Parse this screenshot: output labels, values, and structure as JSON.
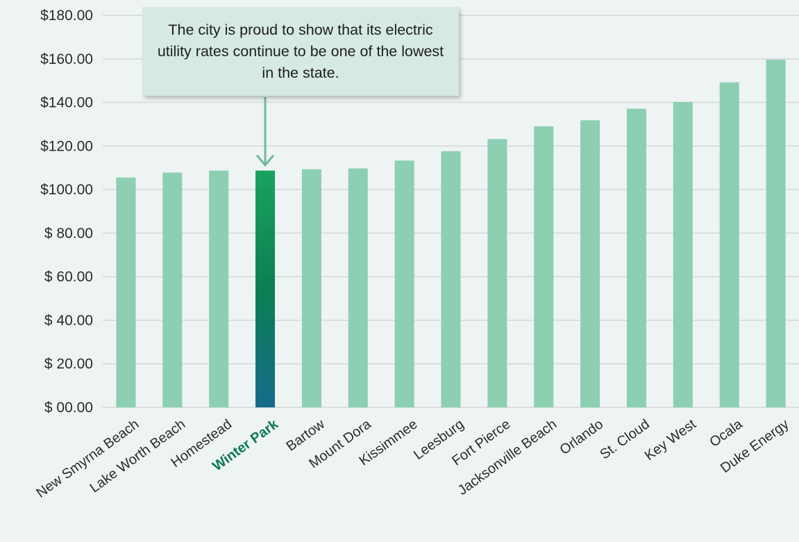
{
  "chart_data": {
    "type": "bar",
    "categories": [
      "New Smyrna Beach",
      "Lake Worth Beach",
      "Homestead",
      "Winter Park",
      "Bartow",
      "Mount Dora",
      "Kissimmee",
      "Leesburg",
      "Fort Pierce",
      "Jacksonville Beach",
      "Orlando",
      "St. Cloud",
      "Key West",
      "Ocala",
      "Duke Energy"
    ],
    "values": [
      105.5,
      107.8,
      108.7,
      108.7,
      109.3,
      109.7,
      113.3,
      117.6,
      123.2,
      129.0,
      131.8,
      137.1,
      140.2,
      149.2,
      159.6
    ],
    "highlight": "Winter Park",
    "ylim": [
      0,
      180
    ],
    "yticks": [
      "$ 00.00",
      "$ 20.00",
      "$ 40.00",
      "$ 60.00",
      "$ 80.00",
      "$100.00",
      "$120.00",
      "$140.00",
      "$160.00",
      "$180.00"
    ],
    "grid": true,
    "colors": {
      "bar": "#8ccfb3",
      "highlight_top": "#1aa25f",
      "highlight_mid": "#0b7f52",
      "highlight_bottom": "#166b89",
      "arrow": "#6fb8a1",
      "highlight_label": "#0d7a4f"
    },
    "annotation": "The city is proud to show that its electric utility rates continue to be one of the lowest in the state."
  }
}
